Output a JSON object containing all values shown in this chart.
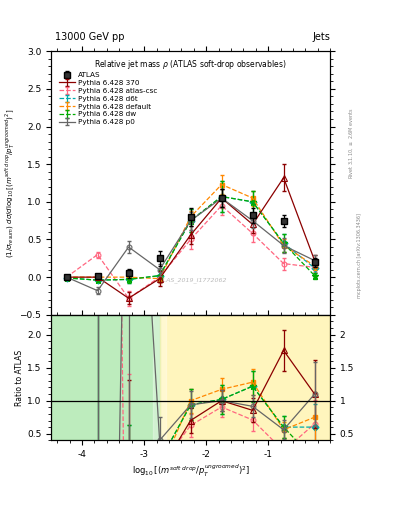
{
  "xlim": [
    -4.5,
    0.0
  ],
  "ylim_main": [
    -0.5,
    3.0
  ],
  "ylim_ratio": [
    0.4,
    2.3
  ],
  "xticks": [
    -4,
    -3,
    -2,
    -1
  ],
  "yticks_main": [
    -0.5,
    0.0,
    0.5,
    1.0,
    1.5,
    2.0,
    2.5,
    3.0
  ],
  "yticks_ratio": [
    0.5,
    1.0,
    1.5,
    2.0
  ],
  "x_data": [
    -4.25,
    -3.75,
    -3.25,
    -2.75,
    -2.25,
    -1.75,
    -1.25,
    -0.75,
    -0.25
  ],
  "ATLAS_y": [
    0.0,
    0.01,
    0.05,
    0.25,
    0.8,
    1.05,
    0.82,
    0.75,
    0.2
  ],
  "ATLAS_yerr": [
    0.005,
    0.02,
    0.06,
    0.1,
    0.12,
    0.12,
    0.1,
    0.08,
    0.06
  ],
  "p370_y": [
    0.0,
    0.0,
    -0.28,
    -0.02,
    0.56,
    1.05,
    0.7,
    1.32,
    0.22
  ],
  "p370_yerr": [
    0.01,
    0.02,
    0.08,
    0.1,
    0.12,
    0.12,
    0.12,
    0.18,
    0.08
  ],
  "atlas_csc_y": [
    0.0,
    0.3,
    -0.28,
    0.0,
    0.5,
    0.95,
    0.58,
    0.18,
    0.13
  ],
  "atlas_csc_yerr": [
    0.01,
    0.04,
    0.1,
    0.08,
    0.12,
    0.12,
    0.12,
    0.08,
    0.06
  ],
  "d6t_y": [
    -0.01,
    -0.04,
    -0.03,
    0.02,
    0.75,
    1.07,
    1.0,
    0.45,
    0.12
  ],
  "d6t_yerr": [
    0.01,
    0.03,
    0.05,
    0.08,
    0.15,
    0.2,
    0.15,
    0.12,
    0.06
  ],
  "default_y": [
    0.0,
    0.0,
    0.0,
    -0.02,
    0.8,
    1.23,
    1.05,
    0.42,
    0.15
  ],
  "default_yerr": [
    0.005,
    0.01,
    0.03,
    0.04,
    0.08,
    0.12,
    0.1,
    0.08,
    0.06
  ],
  "dw_y": [
    -0.01,
    -0.04,
    -0.03,
    0.02,
    0.75,
    1.07,
    1.0,
    0.45,
    0.02
  ],
  "dw_yerr": [
    0.01,
    0.03,
    0.05,
    0.08,
    0.15,
    0.2,
    0.15,
    0.12,
    0.04
  ],
  "p0_y": [
    0.0,
    -0.18,
    0.4,
    0.1,
    0.75,
    1.05,
    0.75,
    0.42,
    0.22
  ],
  "p0_yerr": [
    0.01,
    0.05,
    0.08,
    0.08,
    0.12,
    0.12,
    0.1,
    0.1,
    0.07
  ],
  "color_atlas": "#000000",
  "color_370": "#8B0000",
  "color_atlas_csc": "#FF6680",
  "color_d6t": "#00AAAA",
  "color_default": "#FF8800",
  "color_dw": "#00AA00",
  "color_p0": "#666666",
  "green_band_xmax": -2.75,
  "yellow_band_xmin": -2.75
}
